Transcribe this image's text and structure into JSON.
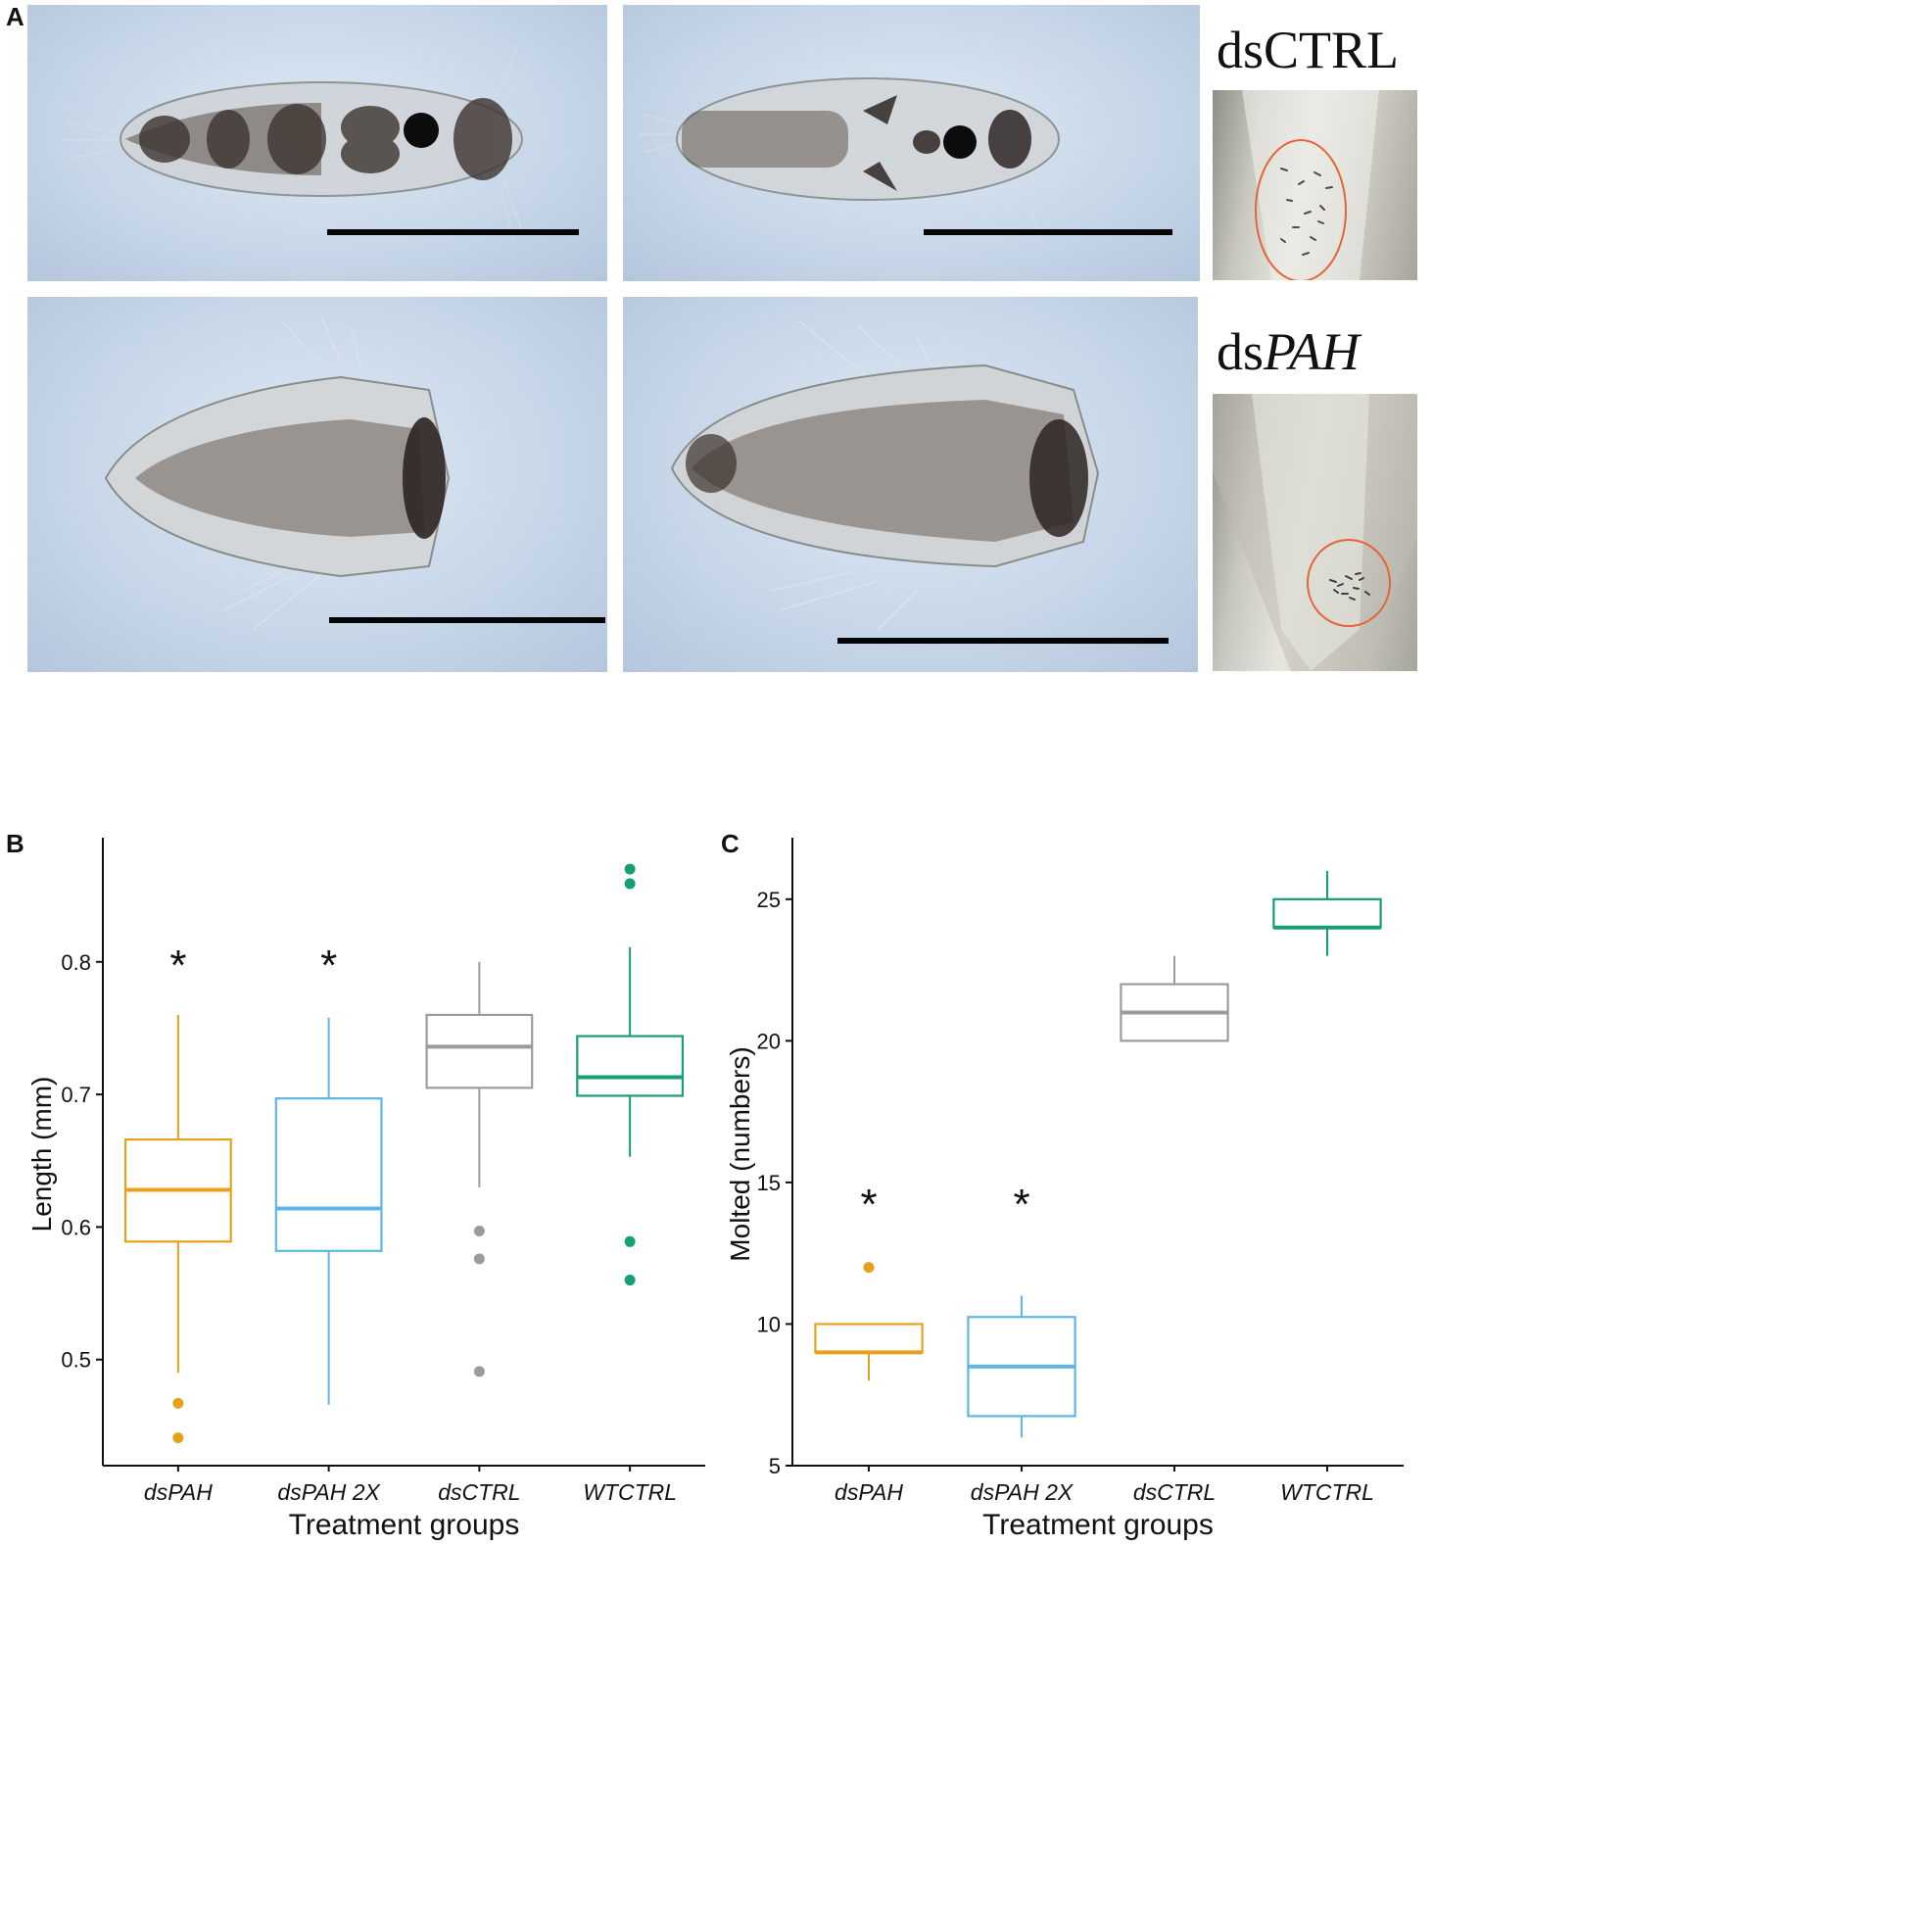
{
  "figure": {
    "panel_a": {
      "letter": "A",
      "groups": [
        {
          "prefix": "ds",
          "name": "CTRL",
          "italic": false
        },
        {
          "prefix": "ds",
          "name": "PAH",
          "italic": true
        }
      ],
      "highlight_color": "#e2653a"
    }
  },
  "chart_data": [
    {
      "panel": "B",
      "type": "box",
      "xlabel": "Treatment groups",
      "ylabel": "Length (mm)",
      "ylim": [
        0.42,
        0.89
      ],
      "yticks": [
        "0.5",
        "0.6",
        "0.7",
        "0.8"
      ],
      "categories": [
        "dsPAH",
        "dsPAH 2X",
        "dsCTRL",
        "WTCTRL"
      ],
      "colors": [
        "#e5a11b",
        "#5cb7e4",
        "#9b9b9b",
        "#169e77"
      ],
      "boxes": [
        {
          "q1": 0.589,
          "median": 0.628,
          "q3": 0.666,
          "whisker_low": 0.49,
          "whisker_high": 0.76,
          "outliers": [
            0.467,
            0.441
          ],
          "significant": true
        },
        {
          "q1": 0.582,
          "median": 0.614,
          "q3": 0.697,
          "whisker_low": 0.466,
          "whisker_high": 0.758,
          "outliers": [],
          "significant": true
        },
        {
          "q1": 0.705,
          "median": 0.736,
          "q3": 0.76,
          "whisker_low": 0.63,
          "whisker_high": 0.8,
          "outliers": [
            0.597,
            0.576,
            0.491
          ],
          "significant": false
        },
        {
          "q1": 0.699,
          "median": 0.713,
          "q3": 0.744,
          "whisker_low": 0.653,
          "whisker_high": 0.811,
          "outliers": [
            0.87,
            0.859,
            0.589,
            0.56
          ],
          "significant": false
        }
      ],
      "significance_marker": "*"
    },
    {
      "panel": "C",
      "type": "box",
      "xlabel": "Treatment groups",
      "ylabel": "Molted (numbers)",
      "ylim": [
        5,
        27
      ],
      "yticks": [
        "5",
        "10",
        "15",
        "20",
        "25"
      ],
      "categories": [
        "dsPAH",
        "dsPAH 2X",
        "dsCTRL",
        "WTCTRL"
      ],
      "colors": [
        "#e5a11b",
        "#5cb7e4",
        "#9b9b9b",
        "#169e77"
      ],
      "boxes": [
        {
          "q1": 9,
          "median": 9,
          "q3": 10,
          "whisker_low": 8,
          "whisker_high": 10,
          "outliers": [
            12
          ],
          "significant": true
        },
        {
          "q1": 6.75,
          "median": 8.5,
          "q3": 10.25,
          "whisker_low": 6,
          "whisker_high": 11,
          "outliers": [],
          "significant": true
        },
        {
          "q1": 20,
          "median": 21,
          "q3": 22,
          "whisker_low": 20,
          "whisker_high": 23,
          "outliers": [],
          "significant": false
        },
        {
          "q1": 24,
          "median": 24,
          "q3": 25,
          "whisker_low": 23,
          "whisker_high": 26,
          "outliers": [],
          "significant": false
        }
      ],
      "significance_marker": "*"
    }
  ]
}
